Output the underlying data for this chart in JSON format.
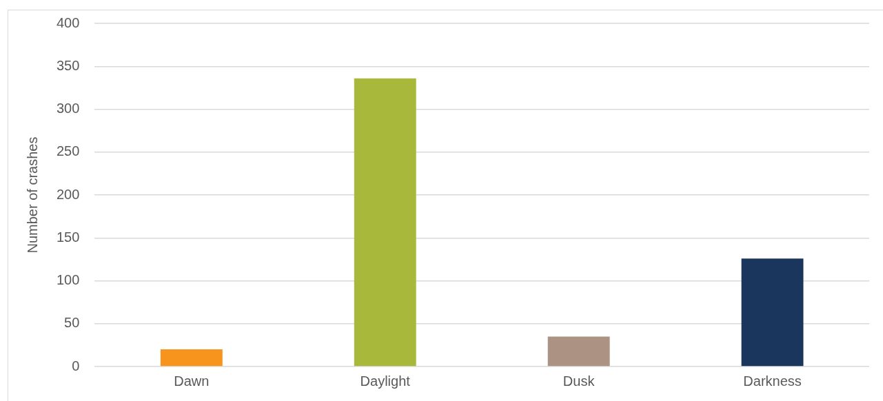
{
  "chart_data": {
    "type": "bar",
    "ylabel": "Number of crashes",
    "categories": [
      "Dawn",
      "Daylight",
      "Dusk",
      "Darkness"
    ],
    "values": [
      20,
      336,
      35,
      126
    ],
    "colors": [
      "#f7941d",
      "#a8b83a",
      "#ab9283",
      "#1b365d"
    ],
    "ylim": [
      0,
      400
    ],
    "yticks": [
      0,
      50,
      100,
      150,
      200,
      250,
      300,
      350,
      400
    ],
    "grid": "y",
    "legend": false
  }
}
